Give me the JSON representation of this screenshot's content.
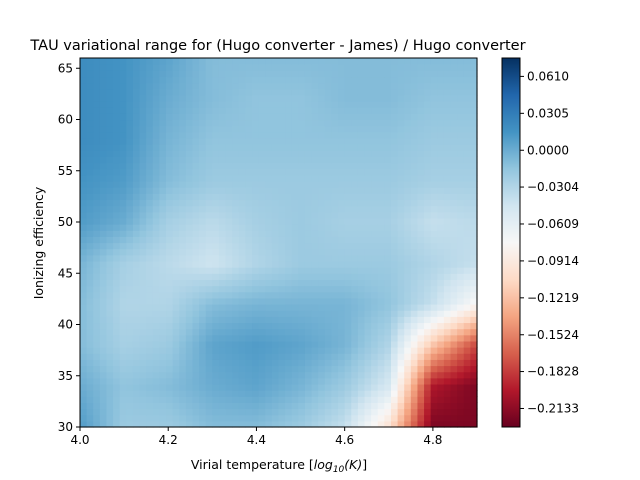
{
  "chart_data": {
    "type": "heatmap",
    "title": "TAU variational range for (Hugo converter - James) / Hugo converter",
    "xlabel_prefix": "Virial temperature [",
    "xlabel_math_base": "log",
    "xlabel_math_sub": "10",
    "xlabel_math_arg": "(K)",
    "xlabel_suffix": "]",
    "ylabel": "Ionizing efficiency",
    "xlim": [
      4.0,
      4.9
    ],
    "ylim": [
      30,
      66
    ],
    "xticks": [
      4.0,
      4.2,
      4.4,
      4.6,
      4.8
    ],
    "xtick_labels": [
      "4.0",
      "4.2",
      "4.4",
      "4.6",
      "4.8"
    ],
    "yticks": [
      30,
      35,
      40,
      45,
      50,
      55,
      60,
      65
    ],
    "ytick_labels": [
      "30",
      "35",
      "40",
      "45",
      "50",
      "55",
      "60",
      "65"
    ],
    "x": [
      4.0,
      4.1,
      4.2,
      4.3,
      4.4,
      4.5,
      4.6,
      4.7,
      4.8,
      4.9
    ],
    "y": [
      30,
      34,
      38,
      42,
      46,
      50,
      54,
      58,
      62,
      66
    ],
    "z": [
      [
        0.01,
        -0.02,
        -0.02,
        -0.01,
        -0.01,
        -0.02,
        -0.04,
        -0.1,
        -0.22,
        -0.22
      ],
      [
        0.0,
        -0.015,
        -0.01,
        0.0,
        0.005,
        -0.005,
        -0.02,
        -0.05,
        -0.2,
        -0.22
      ],
      [
        -0.01,
        -0.025,
        -0.02,
        0.005,
        0.01,
        0.005,
        -0.005,
        -0.03,
        -0.12,
        -0.18
      ],
      [
        -0.01,
        -0.03,
        -0.03,
        -0.01,
        -0.005,
        -0.005,
        -0.005,
        -0.015,
        -0.04,
        -0.08
      ],
      [
        -0.005,
        -0.025,
        -0.035,
        -0.045,
        -0.03,
        -0.02,
        -0.02,
        -0.02,
        -0.03,
        -0.04
      ],
      [
        0.01,
        0.0,
        -0.025,
        -0.035,
        -0.025,
        -0.02,
        -0.025,
        -0.025,
        -0.04,
        -0.035
      ],
      [
        0.015,
        0.01,
        -0.01,
        -0.02,
        -0.02,
        -0.02,
        -0.02,
        -0.02,
        -0.025,
        -0.025
      ],
      [
        0.02,
        0.015,
        -0.005,
        -0.015,
        -0.015,
        -0.015,
        -0.015,
        -0.015,
        -0.02,
        -0.02
      ],
      [
        0.02,
        0.015,
        0.0,
        -0.01,
        -0.015,
        -0.015,
        -0.01,
        -0.01,
        -0.015,
        -0.015
      ],
      [
        0.02,
        0.015,
        0.005,
        -0.01,
        -0.01,
        -0.01,
        -0.01,
        -0.01,
        -0.01,
        -0.01
      ]
    ],
    "colorbar": {
      "vmin": -0.2286,
      "vmax": 0.0762,
      "ticks": [
        0.061,
        0.0305,
        0.0,
        -0.0304,
        -0.0609,
        -0.0914,
        -0.1219,
        -0.1524,
        -0.1828,
        -0.2133
      ],
      "tick_labels": [
        "0.0610",
        "0.0305",
        "0.0000",
        "−0.0304",
        "−0.0609",
        "−0.0914",
        "−0.1219",
        "−0.1524",
        "−0.1828",
        "−0.2133"
      ]
    },
    "colormap": "RdBu",
    "colormap_stops": [
      "#67001f",
      "#b2182b",
      "#d6604d",
      "#f4a582",
      "#fddbc7",
      "#f7f7f7",
      "#d1e5f0",
      "#92c5de",
      "#4393c3",
      "#2166ac",
      "#053061"
    ]
  }
}
